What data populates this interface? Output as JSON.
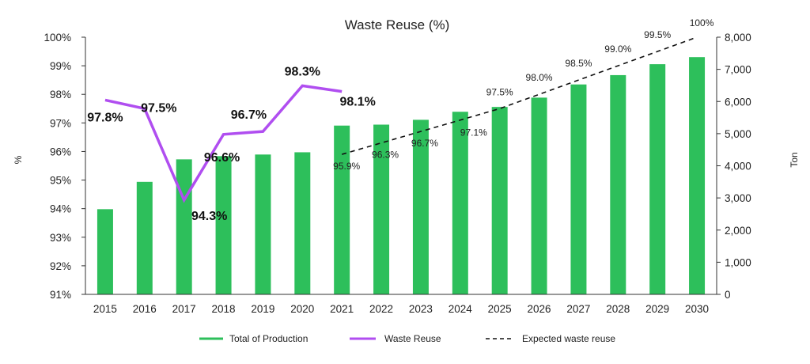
{
  "chart_data": {
    "type": "bar",
    "title": "Waste Reuse (%)",
    "ylabel_left": "%",
    "ylabel_right": "Ton",
    "y_left_ticks": [
      "91%",
      "92%",
      "93%",
      "94%",
      "95%",
      "96%",
      "97%",
      "98%",
      "99%",
      "100%"
    ],
    "y_right_ticks": [
      "0",
      "1,000",
      "2,000",
      "3,000",
      "4,000",
      "5,000",
      "6,000",
      "7,000",
      "8,000"
    ],
    "ylim_left": [
      91,
      100
    ],
    "ylim_right": [
      0,
      8000
    ],
    "categories": [
      "2015",
      "2016",
      "2017",
      "2018",
      "2019",
      "2020",
      "2021",
      "2022",
      "2023",
      "2024",
      "2025",
      "2026",
      "2027",
      "2028",
      "2029",
      "2030"
    ],
    "series": [
      {
        "name": "Total of Production",
        "kind": "bar",
        "axis": "right",
        "color": "#2dbf5b",
        "values": [
          2650,
          3500,
          4200,
          4300,
          4350,
          4420,
          5250,
          5280,
          5430,
          5680,
          5830,
          6120,
          6530,
          6820,
          7160,
          7380
        ]
      },
      {
        "name": "Waste Reuse",
        "kind": "line",
        "axis": "left",
        "color": "#b04ef0",
        "x": [
          "2015",
          "2016",
          "2017",
          "2018",
          "2019",
          "2020",
          "2021"
        ],
        "values": [
          97.8,
          97.5,
          94.3,
          96.6,
          96.7,
          98.3,
          98.1
        ],
        "labels": [
          "97.8%",
          "97.5%",
          "94.3%",
          "96.6%",
          "96.7%",
          "98.3%",
          "98.1%"
        ]
      },
      {
        "name": "Expected waste reuse",
        "kind": "line",
        "style": "dashed",
        "axis": "left",
        "color": "#111111",
        "x": [
          "2021",
          "2022",
          "2023",
          "2024",
          "2025",
          "2026",
          "2027",
          "2028",
          "2029",
          "2030"
        ],
        "values": [
          95.9,
          96.3,
          96.7,
          97.1,
          97.5,
          98.0,
          98.5,
          99.0,
          99.5,
          100
        ],
        "labels": [
          "95.9%",
          "96.3%",
          "96.7%",
          "97.1%",
          "97.5%",
          "98.0%",
          "98.5%",
          "99.0%",
          "99.5%",
          "100%"
        ]
      }
    ],
    "legend_position": "bottom",
    "grid": false
  }
}
